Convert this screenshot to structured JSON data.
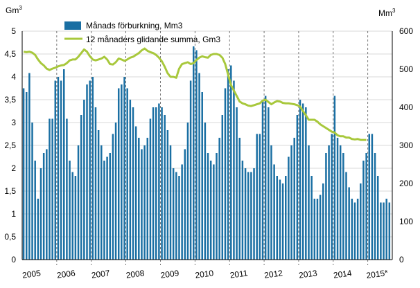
{
  "chart_data": {
    "type": "bar+line",
    "y_left_unit": "Gm3",
    "y_right_unit": "Mm3",
    "y_left_ticks": [
      "0",
      "0,5",
      "1",
      "1,5",
      "2",
      "2,5",
      "3",
      "3,5",
      "4",
      "4,5",
      "5"
    ],
    "y_right_ticks": [
      "0",
      "100",
      "200",
      "300",
      "400",
      "500",
      "600"
    ],
    "ylim_left": [
      0,
      5
    ],
    "ylim_right": [
      0,
      600
    ],
    "x_year_labels": [
      "2005",
      "2006",
      "2007",
      "2008",
      "2009",
      "2010",
      "2011",
      "2012",
      "2013",
      "2014",
      "2015*"
    ],
    "grid": "horizontal gridlines every 0,5 Gm3; dashed vertical lines at year boundaries",
    "legend_position": "top-left inside plot",
    "series": [
      {
        "name": "Månads förburkning, Mm3",
        "kind": "bar",
        "axis": "right",
        "color": "#1a6fa3",
        "values": [
          450,
          440,
          490,
          360,
          260,
          160,
          240,
          280,
          290,
          370,
          370,
          470,
          480,
          470,
          500,
          370,
          260,
          230,
          220,
          300,
          380,
          420,
          460,
          470,
          480,
          400,
          340,
          300,
          260,
          270,
          280,
          330,
          360,
          450,
          460,
          480,
          450,
          420,
          400,
          350,
          320,
          290,
          300,
          320,
          370,
          400,
          400,
          410,
          400,
          380,
          340,
          300,
          240,
          230,
          220,
          250,
          290,
          360,
          470,
          560,
          550,
          490,
          440,
          360,
          280,
          260,
          250,
          280,
          320,
          380,
          450,
          500,
          510,
          470,
          400,
          320,
          260,
          240,
          230,
          230,
          240,
          330,
          330,
          420,
          430,
          400,
          300,
          250,
          220,
          210,
          200,
          220,
          270,
          300,
          320,
          380,
          420,
          410,
          400,
          300,
          220,
          160,
          160,
          170,
          200,
          280,
          300,
          330,
          430,
          320,
          300,
          280,
          230,
          190,
          160,
          150,
          160,
          200,
          260,
          280,
          330,
          330,
          280,
          220,
          150,
          150,
          160,
          150
        ]
      },
      {
        "name": "12 månaders glidande summa, Gm3",
        "kind": "line",
        "axis": "left",
        "color": "#a8c83c",
        "values": [
          4.55,
          4.54,
          4.55,
          4.53,
          4.48,
          4.38,
          4.3,
          4.25,
          4.18,
          4.15,
          4.18,
          4.2,
          4.23,
          4.25,
          4.26,
          4.3,
          4.36,
          4.38,
          4.38,
          4.44,
          4.52,
          4.6,
          4.55,
          4.45,
          4.38,
          4.36,
          4.38,
          4.4,
          4.44,
          4.38,
          4.28,
          4.27,
          4.32,
          4.4,
          4.38,
          4.35,
          4.38,
          4.42,
          4.44,
          4.48,
          4.52,
          4.58,
          4.62,
          4.57,
          4.54,
          4.52,
          4.48,
          4.42,
          4.34,
          4.22,
          4.08,
          4.0,
          4.0,
          3.98,
          4.18,
          4.28,
          4.3,
          4.32,
          4.28,
          4.3,
          4.37,
          4.42,
          4.45,
          4.43,
          4.42,
          4.48,
          4.5,
          4.5,
          4.48,
          4.42,
          4.28,
          4.05,
          3.82,
          3.7,
          3.58,
          3.46,
          3.42,
          3.4,
          3.37,
          3.36,
          3.38,
          3.4,
          3.42,
          3.48,
          3.5,
          3.45,
          3.4,
          3.44,
          3.47,
          3.46,
          3.43,
          3.42,
          3.42,
          3.41,
          3.4,
          3.38,
          3.35,
          3.25,
          3.16,
          3.06,
          3.06,
          3.06,
          3.02,
          2.96,
          2.92,
          2.88,
          2.84,
          2.8,
          2.78,
          2.72,
          2.7,
          2.7,
          2.67,
          2.67,
          2.64,
          2.63,
          2.64,
          2.62,
          2.62,
          2.62
        ]
      }
    ]
  }
}
